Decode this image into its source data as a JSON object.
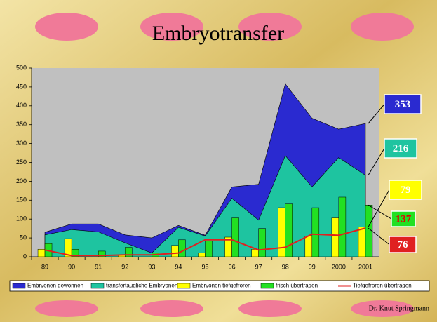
{
  "chart_data": {
    "type": "combo",
    "title": "Embryotransfer",
    "footer": "Dr. Knut Springmann",
    "categories": [
      "89",
      "90",
      "91",
      "92",
      "93",
      "94",
      "95",
      "96",
      "97",
      "98",
      "99",
      "2000",
      "2001"
    ],
    "ylim": [
      0,
      500
    ],
    "yticks": [
      0,
      50,
      100,
      150,
      200,
      250,
      300,
      350,
      400,
      450,
      500
    ],
    "grid": false,
    "legend": "bottom",
    "series": [
      {
        "name": "Embryonen gewonnen",
        "kind": "area",
        "color": "#2a2ad0",
        "values": [
          65,
          87,
          87,
          58,
          50,
          83,
          57,
          185,
          192,
          458,
          367,
          338,
          353
        ]
      },
      {
        "name": "transfertaugliche Embryonen",
        "kind": "area",
        "color": "#1ec4a0",
        "values": [
          58,
          72,
          66,
          37,
          10,
          78,
          55,
          155,
          97,
          268,
          185,
          263,
          216
        ]
      },
      {
        "name": "Embryonen tiefgefroren",
        "kind": "bar",
        "color": "#ffff00",
        "values": [
          20,
          48,
          0,
          5,
          0,
          30,
          10,
          52,
          20,
          130,
          55,
          103,
          79
        ]
      },
      {
        "name": "frisch übertragen",
        "kind": "bar",
        "color": "#22e022",
        "values": [
          35,
          20,
          15,
          25,
          10,
          45,
          42,
          103,
          75,
          140,
          130,
          158,
          137
        ]
      },
      {
        "name": "Tiefgefroren übertragen",
        "kind": "line",
        "color": "#e02020",
        "values": [
          18,
          3,
          3,
          5,
          5,
          10,
          45,
          45,
          18,
          25,
          60,
          57,
          76
        ]
      }
    ]
  }
}
